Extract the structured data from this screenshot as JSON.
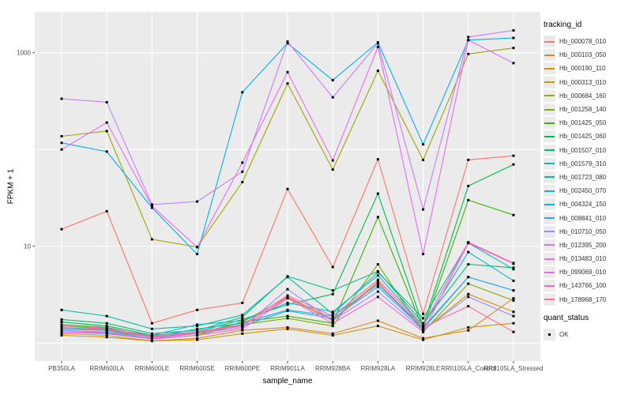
{
  "chart_data": {
    "type": "line",
    "title": "",
    "xlabel": "sample_name",
    "ylabel": "FPKM + 1",
    "y_scale": "log10",
    "y_ticks": [
      10,
      1000
    ],
    "y_gridlines": [
      1,
      10,
      100,
      1000
    ],
    "ylim": [
      1,
      2200
    ],
    "grid": true,
    "panel_bg": "#ebebeb",
    "grid_color": "#ffffff",
    "point_color": "#000000",
    "point_marker": "small-black-square",
    "axis_text_color": "#4d4d4d",
    "legend": {
      "title": "tracking_id",
      "position": "right"
    },
    "quant_legend": {
      "title": "quant_status",
      "items": [
        "OK"
      ]
    },
    "categories": [
      "PB350LA",
      "RRIM600LA",
      "RRIM600LE",
      "RRIM600SE",
      "RRIM600PE",
      "RRIM901LA",
      "RRIM928BA",
      "RRIM928LA",
      "RRIM928LE",
      "RRII105LA_Control",
      "RRII105LA_Stressed"
    ],
    "series": [
      {
        "name": "Hb_000078_010",
        "color": "#F8766D",
        "values": [
          15,
          23,
          1.6,
          2.2,
          2.6,
          39,
          6.1,
          79,
          2.0,
          78,
          86
        ]
      },
      {
        "name": "Hb_000103_050",
        "color": "#EA8331",
        "values": [
          1.25,
          1.2,
          1.05,
          1.12,
          1.35,
          1.45,
          1.25,
          1.7,
          1.12,
          1.35,
          2.9
        ]
      },
      {
        "name": "Hb_000190_110",
        "color": "#D89000",
        "values": [
          1.35,
          1.3,
          1.1,
          1.2,
          1.65,
          3.0,
          1.75,
          4.3,
          1.35,
          3.2,
          2.1
        ]
      },
      {
        "name": "Hb_000313_010",
        "color": "#C09B00",
        "values": [
          1.2,
          1.15,
          1.05,
          1.08,
          1.25,
          1.4,
          1.2,
          1.5,
          1.08,
          1.45,
          1.6
        ]
      },
      {
        "name": "Hb_000684_160",
        "color": "#A3A500",
        "values": [
          137,
          155,
          11.8,
          9.8,
          46,
          480,
          62,
          650,
          78,
          970,
          1120
        ]
      },
      {
        "name": "Hb_001258_140",
        "color": "#7CAE00",
        "values": [
          1.45,
          1.35,
          1.1,
          1.2,
          1.55,
          1.8,
          1.5,
          6.5,
          1.3,
          4.1,
          2.75
        ]
      },
      {
        "name": "Hb_001425_050",
        "color": "#39B600",
        "values": [
          1.55,
          1.45,
          1.15,
          1.25,
          1.65,
          1.9,
          1.6,
          20,
          1.4,
          30,
          21
        ]
      },
      {
        "name": "Hb_001425_060",
        "color": "#00BB4E",
        "values": [
          1.65,
          1.5,
          1.2,
          1.3,
          1.75,
          2.5,
          3.2,
          35,
          1.5,
          42,
          70
        ]
      },
      {
        "name": "Hb_001507_010",
        "color": "#00BF7D",
        "values": [
          1.75,
          1.6,
          1.25,
          1.35,
          1.85,
          4.9,
          3.5,
          5.5,
          1.6,
          6.5,
          6.0
        ]
      },
      {
        "name": "Hb_001579_310",
        "color": "#00C1A3",
        "values": [
          2.2,
          1.9,
          1.4,
          1.5,
          1.95,
          4.8,
          2.0,
          5.4,
          1.8,
          10.8,
          5.8
        ]
      },
      {
        "name": "Hb_001723_080",
        "color": "#00BFC4",
        "values": [
          1.5,
          1.4,
          1.2,
          1.55,
          1.7,
          2.6,
          2.1,
          5.0,
          1.5,
          8.7,
          4.4
        ]
      },
      {
        "name": "Hb_002450_070",
        "color": "#00BAE0",
        "values": [
          1.4,
          1.35,
          1.15,
          1.4,
          1.6,
          2.2,
          1.9,
          4.0,
          1.45,
          4.8,
          3.5
        ]
      },
      {
        "name": "Hb_004324_150",
        "color": "#00B0F6",
        "values": [
          117,
          95,
          25,
          8.3,
          390,
          1250,
          520,
          1280,
          113,
          1350,
          1420
        ]
      },
      {
        "name": "Hb_008841_010",
        "color": "#35A2FF",
        "values": [
          1.3,
          1.25,
          1.1,
          1.3,
          1.5,
          2.15,
          1.8,
          3.8,
          1.4,
          4.8,
          3.5
        ]
      },
      {
        "name": "Hb_010710_050",
        "color": "#9590FF",
        "values": [
          1.35,
          1.3,
          1.12,
          1.25,
          1.45,
          3.6,
          1.7,
          3.4,
          1.35,
          3.0,
          1.9
        ]
      },
      {
        "name": "Hb_012395_200",
        "color": "#C77CFF",
        "values": [
          334,
          308,
          27,
          29,
          59,
          1300,
          346,
          1250,
          24,
          1450,
          1700
        ]
      },
      {
        "name": "Hb_013483_010",
        "color": "#E76BF3",
        "values": [
          100,
          190,
          26,
          9.8,
          73,
          630,
          77,
          1150,
          8.3,
          1350,
          780
        ]
      },
      {
        "name": "Hb_099069_010",
        "color": "#FA62DB",
        "values": [
          1.3,
          1.28,
          1.1,
          1.2,
          1.4,
          2.9,
          1.6,
          3.0,
          1.3,
          10.8,
          6.6
        ]
      },
      {
        "name": "Hb_143766_100",
        "color": "#FF62BC",
        "values": [
          1.5,
          1.42,
          1.18,
          1.3,
          1.55,
          3.1,
          1.9,
          4.5,
          1.5,
          11.0,
          6.7
        ]
      },
      {
        "name": "Hb_178968_170",
        "color": "#FF6A98",
        "values": [
          1.45,
          1.38,
          1.15,
          1.28,
          1.5,
          2.95,
          1.7,
          4.2,
          1.45,
          2.4,
          1.3
        ]
      }
    ]
  }
}
